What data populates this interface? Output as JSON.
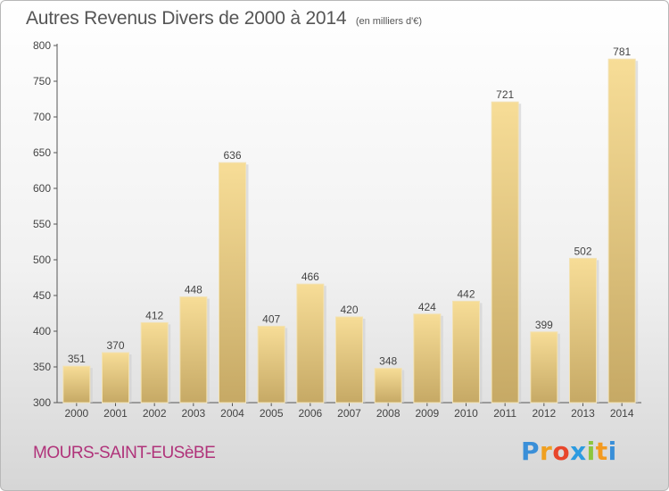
{
  "chart_data": {
    "type": "bar",
    "title": "Autres Revenus Divers de 2000 à 2014",
    "subtitle": "(en milliers d'€)",
    "categories": [
      "2000",
      "2001",
      "2002",
      "2003",
      "2004",
      "2005",
      "2006",
      "2007",
      "2008",
      "2009",
      "2010",
      "2011",
      "2012",
      "2013",
      "2014"
    ],
    "values": [
      351,
      370,
      412,
      448,
      636,
      407,
      466,
      420,
      348,
      424,
      442,
      721,
      399,
      502,
      781
    ],
    "ylim": [
      300,
      800
    ],
    "yticks": [
      300,
      350,
      400,
      450,
      500,
      550,
      600,
      650,
      700,
      750,
      800
    ],
    "grid": false,
    "bar_color": "#e3c47f"
  },
  "footer": {
    "commune": "MOURS-SAINT-EUSèBE",
    "brand": "Proxiti"
  }
}
